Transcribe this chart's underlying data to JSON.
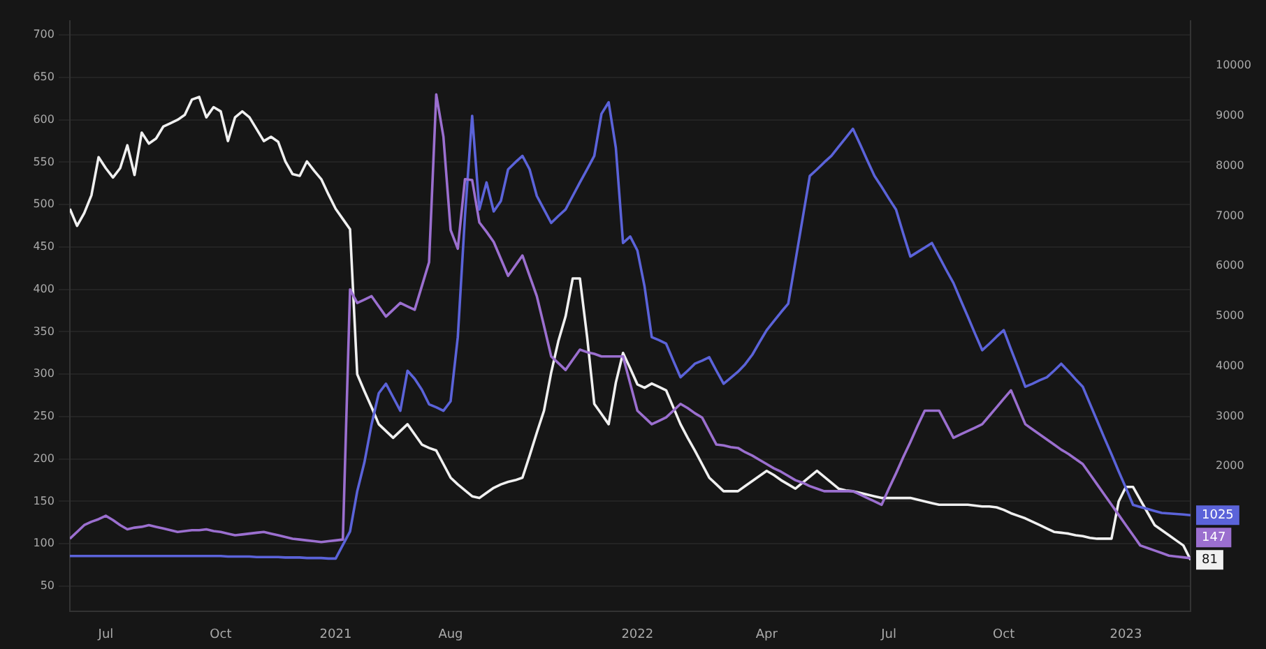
{
  "chart_data": {
    "type": "line",
    "categories": [
      null,
      null,
      null,
      null,
      null,
      "Jul",
      null,
      null,
      null,
      null,
      null,
      null,
      null,
      null,
      null,
      null,
      null,
      null,
      null,
      null,
      null,
      "Oct",
      null,
      null,
      null,
      null,
      null,
      null,
      null,
      null,
      null,
      null,
      null,
      null,
      null,
      null,
      null,
      "2021",
      null,
      null,
      null,
      null,
      null,
      null,
      null,
      null,
      null,
      null,
      null,
      null,
      null,
      null,
      null,
      "Aug",
      null,
      null,
      null,
      null,
      null,
      null,
      null,
      null,
      null,
      null,
      null,
      null,
      null,
      null,
      null,
      null,
      null,
      null,
      null,
      null,
      null,
      null,
      null,
      null,
      null,
      "2022",
      null,
      null,
      null,
      null,
      null,
      null,
      null,
      null,
      null,
      null,
      null,
      null,
      null,
      null,
      null,
      null,
      null,
      "Apr",
      null,
      null,
      null,
      null,
      null,
      null,
      null,
      null,
      null,
      null,
      null,
      null,
      null,
      null,
      null,
      null,
      "Jul",
      null,
      null,
      null,
      null,
      null,
      null,
      null,
      null,
      null,
      null,
      null,
      null,
      null,
      null,
      null,
      "Oct",
      null,
      null,
      null,
      null,
      null,
      null,
      null,
      null,
      null,
      null,
      null,
      null,
      null,
      null,
      null,
      null,
      "2023",
      null,
      null,
      null,
      null,
      null,
      null,
      null,
      null,
      null
    ],
    "ylim": [
      20,
      717
    ],
    "yticks": [
      50,
      100,
      150,
      200,
      250,
      300,
      350,
      400,
      450,
      500,
      550,
      600,
      650,
      700
    ],
    "y2lim": [
      -900,
      10900
    ],
    "y2ticks": [
      2000,
      3000,
      4000,
      5000,
      6000,
      7000,
      8000,
      9000,
      10000
    ],
    "grid": "y",
    "legend": false,
    "marker": "none",
    "line_style": "solid",
    "annotations": [
      "147"
    ],
    "series": [
      {
        "color": "#9b6fcf",
        "values": [
          106,
          114,
          122,
          126,
          129,
          133,
          128,
          122,
          117,
          119,
          120,
          122,
          120,
          118,
          116,
          114,
          115,
          116,
          116,
          117,
          115,
          114,
          112,
          110,
          111,
          112,
          113,
          114,
          112,
          110,
          108,
          106,
          105,
          104,
          103,
          102,
          103,
          104,
          105,
          400,
          384,
          388,
          392,
          380,
          368,
          376,
          384,
          380,
          376,
          404,
          432,
          630,
          580,
          470,
          448,
          530,
          529,
          479,
          468,
          456,
          436,
          416,
          428,
          440,
          416,
          392,
          357,
          321,
          313,
          305,
          317,
          329,
          326,
          324,
          321,
          321,
          321,
          321,
          289,
          257,
          249,
          241,
          245,
          249,
          257,
          265,
          260,
          254,
          249,
          233,
          217,
          216,
          214,
          213,
          208,
          204,
          199,
          194,
          189,
          185,
          180,
          175,
          172,
          168,
          165,
          162,
          162,
          162,
          162,
          162,
          158,
          154,
          150,
          146,
          165,
          183,
          202,
          220,
          239,
          257,
          257,
          257,
          241,
          225,
          229,
          233,
          237,
          241,
          251,
          261,
          271,
          281,
          261,
          241,
          235,
          229,
          223,
          217,
          211,
          206,
          200,
          194,
          182,
          170,
          158,
          146,
          134,
          122,
          110,
          98,
          95,
          92,
          89,
          86,
          85,
          84,
          83
        ]
      },
      {
        "color": "#5b63d9",
        "axis": "y2",
        "values": [
          210,
          210,
          210,
          210,
          210,
          210,
          210,
          210,
          210,
          210,
          210,
          210,
          210,
          210,
          210,
          210,
          210,
          210,
          210,
          210,
          210,
          210,
          200,
          200,
          200,
          200,
          190,
          190,
          190,
          190,
          180,
          180,
          180,
          170,
          170,
          170,
          160,
          160,
          430,
          700,
          1500,
          2080,
          2840,
          3460,
          3650,
          3380,
          3110,
          3910,
          3750,
          3530,
          3240,
          3180,
          3110,
          3300,
          4580,
          7000,
          9000,
          7130,
          7670,
          7090,
          7300,
          7930,
          8070,
          8200,
          7930,
          7400,
          7130,
          6860,
          7000,
          7130,
          7400,
          7670,
          7930,
          8200,
          9040,
          9270,
          8360,
          6460,
          6590,
          6310,
          5590,
          4580,
          4520,
          4450,
          4110,
          3780,
          3910,
          4050,
          4110,
          4180,
          3910,
          3650,
          3770,
          3890,
          4040,
          4230,
          4480,
          4720,
          4900,
          5080,
          5250,
          6100,
          6950,
          7800,
          7930,
          8070,
          8200,
          8380,
          8560,
          8740,
          8430,
          8110,
          7800,
          7580,
          7350,
          7130,
          6650,
          6190,
          6280,
          6370,
          6460,
          6190,
          5920,
          5660,
          5320,
          4990,
          4650,
          4320,
          4450,
          4590,
          4720,
          4340,
          3970,
          3590,
          3650,
          3720,
          3780,
          3910,
          4050,
          3900,
          3740,
          3590,
          3250,
          2910,
          2570,
          2240,
          1900,
          1570,
          1230,
          1190,
          1150,
          1110,
          1070,
          1060,
          1050,
          1040,
          1025
        ],
        "value_labels": [
          null,
          null,
          null,
          null,
          null,
          null,
          null,
          null,
          null,
          null,
          null,
          null,
          null,
          null,
          null,
          null,
          null,
          null,
          null,
          null,
          null,
          null,
          null,
          null,
          null,
          null,
          null,
          null,
          null,
          null,
          null,
          null,
          null,
          null,
          null,
          null,
          null,
          null,
          null,
          null,
          null,
          null,
          null,
          null,
          null,
          null,
          null,
          null,
          null,
          null,
          null,
          null,
          null,
          null,
          null,
          null,
          null,
          null,
          null,
          null,
          null,
          null,
          null,
          null,
          null,
          null,
          null,
          null,
          null,
          null,
          null,
          null,
          null,
          null,
          null,
          null,
          null,
          null,
          null,
          null,
          null,
          null,
          null,
          null,
          null,
          null,
          null,
          null,
          null,
          null,
          null,
          null,
          null,
          null,
          null,
          null,
          null,
          null,
          null,
          null,
          null,
          null,
          null,
          null,
          null,
          null,
          null,
          null,
          null,
          null,
          null,
          null,
          null,
          null,
          null,
          null,
          null,
          null,
          null,
          null,
          null,
          null,
          null,
          null,
          null,
          null,
          null,
          null,
          null,
          null,
          null,
          null,
          null,
          null,
          null,
          null,
          null,
          null,
          null,
          null,
          null,
          null,
          null,
          null,
          null,
          null,
          null,
          null,
          null,
          null,
          null,
          null,
          null,
          null,
          null,
          null,
          "1025"
        ]
      },
      {
        "color": "#f0f0f0",
        "values": [
          495,
          475,
          490,
          511,
          556,
          543,
          532,
          543,
          570,
          535,
          585,
          572,
          578,
          592,
          596,
          600,
          606,
          624,
          627,
          603,
          615,
          610,
          575,
          603,
          610,
          603,
          589,
          575,
          580,
          574,
          551,
          536,
          534,
          551,
          540,
          530,
          512,
          495,
          483,
          471,
          300,
          280,
          261,
          241,
          233,
          225,
          233,
          241,
          229,
          217,
          213,
          210,
          194,
          178,
          170,
          163,
          156,
          154,
          160,
          166,
          170,
          173,
          175,
          178,
          204,
          231,
          257,
          302,
          339,
          368,
          413,
          413,
          344,
          265,
          253,
          241,
          290,
          325,
          307,
          288,
          284,
          289,
          285,
          281,
          261,
          241,
          225,
          210,
          194,
          178,
          170,
          162,
          162,
          162,
          168,
          174,
          180,
          186,
          181,
          175,
          170,
          165,
          172,
          179,
          186,
          179,
          172,
          165,
          163,
          162,
          160,
          158,
          156,
          154,
          154,
          154,
          154,
          154,
          152,
          150,
          148,
          146,
          146,
          146,
          146,
          146,
          145,
          144,
          144,
          143,
          140,
          136,
          133,
          130,
          126,
          122,
          118,
          114,
          113,
          112,
          110,
          109,
          107,
          106,
          106,
          106,
          150,
          167,
          167,
          152,
          137,
          122,
          116,
          110,
          104,
          98,
          81
        ],
        "value_labels": [
          null,
          null,
          null,
          null,
          null,
          null,
          null,
          null,
          null,
          null,
          null,
          null,
          null,
          null,
          null,
          null,
          null,
          null,
          null,
          null,
          null,
          null,
          null,
          null,
          null,
          null,
          null,
          null,
          null,
          null,
          null,
          null,
          null,
          null,
          null,
          null,
          null,
          null,
          null,
          null,
          null,
          null,
          null,
          null,
          null,
          null,
          null,
          null,
          null,
          null,
          null,
          null,
          null,
          null,
          null,
          null,
          null,
          null,
          null,
          null,
          null,
          null,
          null,
          null,
          null,
          null,
          null,
          null,
          null,
          null,
          null,
          null,
          null,
          null,
          null,
          null,
          null,
          null,
          null,
          null,
          null,
          null,
          null,
          null,
          null,
          null,
          null,
          null,
          null,
          null,
          null,
          null,
          null,
          null,
          null,
          null,
          null,
          null,
          null,
          null,
          null,
          null,
          null,
          null,
          null,
          null,
          null,
          null,
          null,
          null,
          null,
          null,
          null,
          null,
          null,
          null,
          null,
          null,
          null,
          null,
          null,
          null,
          null,
          null,
          null,
          null,
          null,
          null,
          null,
          null,
          null,
          null,
          null,
          null,
          null,
          null,
          null,
          null,
          null,
          null,
          null,
          null,
          null,
          null,
          null,
          null,
          null,
          null,
          null,
          null,
          null,
          null,
          null,
          null,
          null,
          null,
          "81"
        ]
      }
    ]
  }
}
